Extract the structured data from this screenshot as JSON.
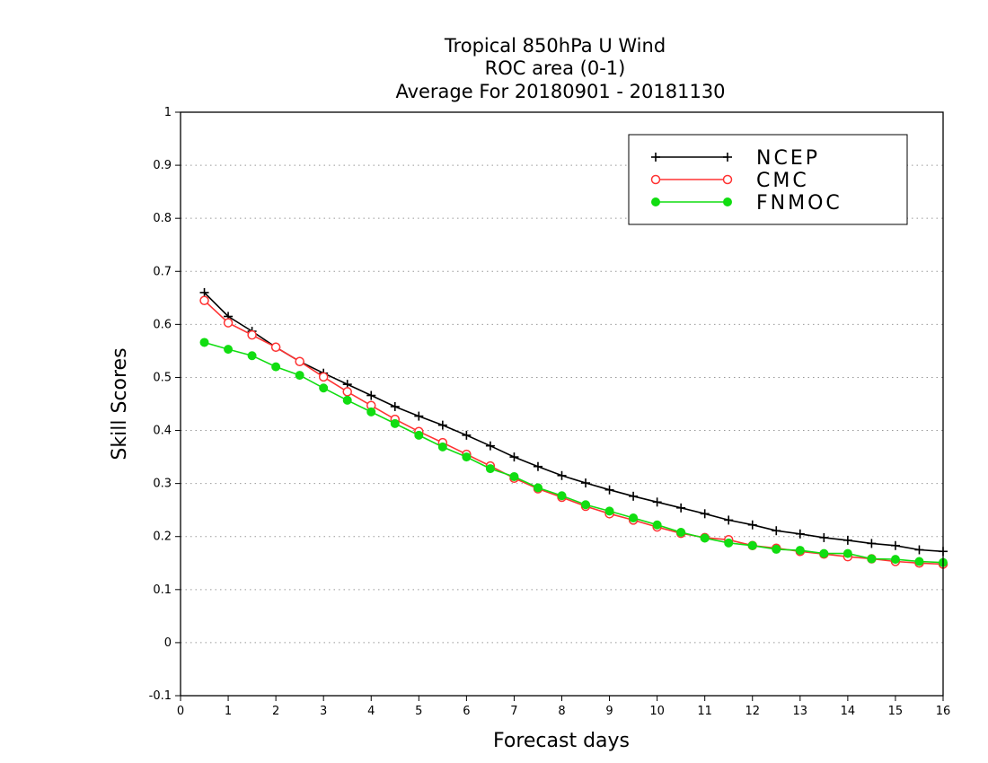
{
  "chart_data": {
    "type": "line",
    "title": [
      "Tropical 850hPa U Wind",
      "ROC area (0-1)",
      "Average For 20180901 - 20181130"
    ],
    "xlabel": "Forecast days",
    "ylabel": "Skill Scores",
    "xlim": [
      0,
      16
    ],
    "ylim": [
      -0.1,
      1
    ],
    "xticks": [
      0,
      1,
      2,
      3,
      4,
      5,
      6,
      7,
      8,
      9,
      10,
      11,
      12,
      13,
      14,
      15,
      16
    ],
    "yticks": [
      -0.1,
      0,
      0.1,
      0.2,
      0.3,
      0.4,
      0.5,
      0.6,
      0.7,
      0.8,
      0.9,
      1
    ],
    "ytick_labels": [
      "-0.1",
      "0",
      "0.1",
      "0.2",
      "0.3",
      "0.4",
      "0.5",
      "0.6",
      "0.7",
      "0.8",
      "0.9",
      "1"
    ],
    "grid": "horizontal dotted",
    "legend_position": "top-right",
    "x": [
      0.5,
      1,
      1.5,
      2,
      2.5,
      3,
      3.5,
      4,
      4.5,
      5,
      5.5,
      6,
      6.5,
      7,
      7.5,
      8,
      8.5,
      9,
      9.5,
      10,
      10.5,
      11,
      11.5,
      12,
      12.5,
      13,
      13.5,
      14,
      14.5,
      15,
      15.5,
      16
    ],
    "series": [
      {
        "name": "NCEP",
        "color": "#000000",
        "marker": "plus",
        "values": [
          0.66,
          0.615,
          0.587,
          0.557,
          0.53,
          0.508,
          0.487,
          0.466,
          0.445,
          0.427,
          0.41,
          0.391,
          0.371,
          0.35,
          0.332,
          0.315,
          0.301,
          0.288,
          0.276,
          0.265,
          0.254,
          0.243,
          0.231,
          0.222,
          0.211,
          0.205,
          0.198,
          0.193,
          0.187,
          0.183,
          0.175,
          0.172
        ]
      },
      {
        "name": "CMC",
        "color": "#ff3333",
        "marker": "open-circle",
        "values": [
          0.645,
          0.603,
          0.58,
          0.557,
          0.53,
          0.501,
          0.473,
          0.447,
          0.421,
          0.398,
          0.377,
          0.355,
          0.333,
          0.31,
          0.29,
          0.274,
          0.257,
          0.243,
          0.231,
          0.218,
          0.206,
          0.198,
          0.194,
          0.183,
          0.178,
          0.172,
          0.167,
          0.162,
          0.158,
          0.153,
          0.15,
          0.148
        ]
      },
      {
        "name": "FNMOC",
        "color": "#11dd11",
        "marker": "filled-circle",
        "values": [
          0.566,
          0.553,
          0.541,
          0.52,
          0.504,
          0.48,
          0.457,
          0.435,
          0.413,
          0.391,
          0.369,
          0.35,
          0.328,
          0.313,
          0.292,
          0.277,
          0.26,
          0.248,
          0.235,
          0.222,
          0.208,
          0.197,
          0.188,
          0.183,
          0.176,
          0.174,
          0.168,
          0.168,
          0.158,
          0.157,
          0.153,
          0.151
        ]
      }
    ]
  }
}
